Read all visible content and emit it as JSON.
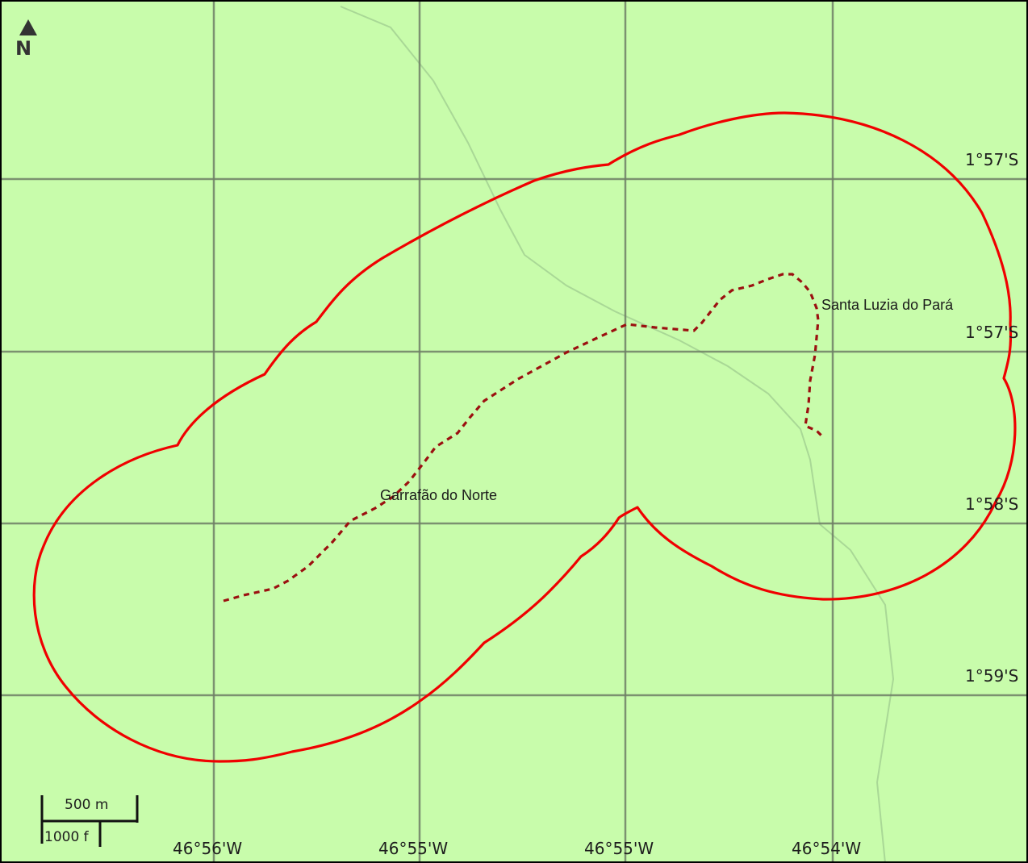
{
  "map": {
    "north_label": "N",
    "north_icon": "north-arrow-icon",
    "latitude_labels": [
      "1°57'S",
      "1°57'S",
      "1°58'S",
      "1°59'S"
    ],
    "longitude_labels": [
      "46°56'W",
      "46°55'W",
      "46°55'W",
      "46°54'W"
    ],
    "places": {
      "santa_luzia": "Santa Luzia do Pará",
      "garrafao": "Garrafão do Norte"
    },
    "scale": {
      "metric": "500 m",
      "imperial": "1000 f"
    },
    "colors": {
      "background": "#c8fcab",
      "buffer": "#f00000",
      "route": "#9b1010",
      "grid": "#6f7f66",
      "road": "#a9d896"
    }
  }
}
